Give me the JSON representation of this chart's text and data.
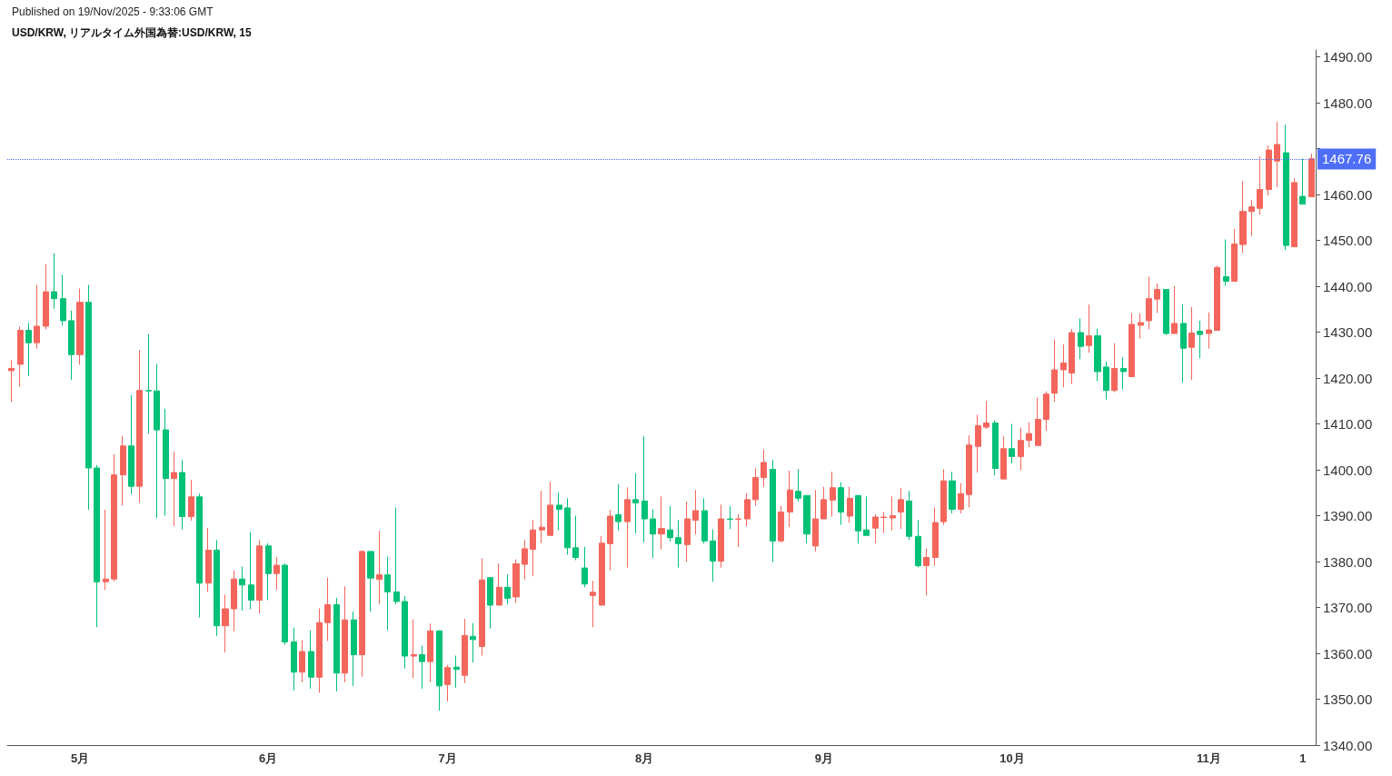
{
  "chart_data": {
    "type": "candlestick",
    "title": "USD/KRW, リアルタイム外国為替:USD/KRW, 15",
    "annotations": [
      "Published on 19/Nov/2025 - 9:33:06 GMT"
    ],
    "categories": [
      null,
      null,
      null,
      null,
      null,
      null,
      null,
      null,
      "5月",
      null,
      null,
      null,
      null,
      null,
      null,
      null,
      null,
      null,
      null,
      null,
      null,
      null,
      null,
      null,
      null,
      null,
      null,
      null,
      null,
      null,
      "6月",
      null,
      null,
      null,
      null,
      null,
      null,
      null,
      null,
      null,
      null,
      null,
      null,
      null,
      null,
      null,
      null,
      null,
      null,
      null,
      null,
      "7月",
      null,
      null,
      null,
      null,
      null,
      null,
      null,
      null,
      null,
      null,
      null,
      null,
      null,
      null,
      null,
      null,
      null,
      null,
      null,
      null,
      null,
      null,
      "8月",
      null,
      null,
      null,
      null,
      null,
      null,
      null,
      null,
      null,
      null,
      null,
      null,
      null,
      null,
      null,
      null,
      null,
      null,
      null,
      null,
      "9月",
      null,
      null,
      null,
      null,
      null,
      null,
      null,
      null,
      null,
      null,
      null,
      null,
      null,
      null,
      null,
      null,
      null,
      null,
      null,
      null,
      null,
      "10月",
      null,
      null,
      null,
      null,
      null,
      null,
      null,
      null,
      null,
      null,
      null,
      null,
      null,
      null,
      null,
      null,
      null,
      null,
      null,
      null,
      null,
      null,
      "11月",
      null,
      null,
      null,
      null,
      null,
      null,
      null,
      null,
      null,
      null,
      "1",
      null
    ],
    "ohlc": [
      [
        1421.6,
        1423.9,
        1414.8,
        1422.1
      ],
      [
        1423.0,
        1431.2,
        1418.1,
        1430.4
      ],
      [
        1430.4,
        1432.0,
        1420.4,
        1427.7
      ],
      [
        1427.7,
        1440.3,
        1426.4,
        1431.3
      ],
      [
        1431.3,
        1444.8,
        1430.6,
        1438.8
      ],
      [
        1438.8,
        1447.2,
        1435.1,
        1437.3
      ],
      [
        1437.3,
        1442.5,
        1431.5,
        1432.5
      ],
      [
        1432.5,
        1434.7,
        1419.6,
        1425.1
      ],
      [
        1425.1,
        1439.5,
        1422.9,
        1436.5
      ],
      [
        1436.5,
        1440.3,
        1391.3,
        1400.4
      ],
      [
        1400.4,
        1401.0,
        1365.7,
        1375.6
      ],
      [
        1375.6,
        1391.3,
        1373.8,
        1376.2
      ],
      [
        1376.2,
        1403.4,
        1375.7,
        1398.9
      ],
      [
        1398.9,
        1407.4,
        1392.2,
        1405.2
      ],
      [
        1405.2,
        1416.3,
        1394.7,
        1396.4
      ],
      [
        1396.4,
        1426.1,
        1392.8,
        1417.3
      ],
      [
        1417.3,
        1429.6,
        1407.9,
        1417.2
      ],
      [
        1417.2,
        1423.1,
        1389.5,
        1408.7
      ],
      [
        1408.7,
        1413.3,
        1390.0,
        1398.1
      ],
      [
        1398.1,
        1404.0,
        1387.7,
        1399.4
      ],
      [
        1399.4,
        1402.2,
        1387.0,
        1389.8
      ],
      [
        1389.8,
        1397.8,
        1388.9,
        1394.1
      ],
      [
        1394.1,
        1394.8,
        1367.8,
        1375.3
      ],
      [
        1375.3,
        1387.3,
        1373.4,
        1382.5
      ],
      [
        1382.5,
        1384.7,
        1363.8,
        1366.0
      ],
      [
        1366.0,
        1372.8,
        1360.2,
        1369.7
      ],
      [
        1369.7,
        1378.1,
        1364.8,
        1376.2
      ],
      [
        1376.2,
        1378.9,
        1369.3,
        1374.9
      ],
      [
        1374.9,
        1386.5,
        1369.6,
        1371.6
      ],
      [
        1371.6,
        1384.7,
        1368.7,
        1383.4
      ],
      [
        1383.4,
        1384.0,
        1371.6,
        1377.4
      ],
      [
        1377.4,
        1381.0,
        1373.8,
        1379.2
      ],
      [
        1379.2,
        1379.6,
        1361.9,
        1362.5
      ],
      [
        1362.5,
        1365.6,
        1351.9,
        1355.9
      ],
      [
        1355.9,
        1362.9,
        1353.7,
        1360.4
      ],
      [
        1360.4,
        1365.0,
        1352.3,
        1354.8
      ],
      [
        1354.8,
        1369.8,
        1351.4,
        1366.7
      ],
      [
        1366.7,
        1376.5,
        1362.7,
        1370.6
      ],
      [
        1370.6,
        1372.1,
        1351.7,
        1355.7
      ],
      [
        1355.7,
        1374.6,
        1353.7,
        1367.3
      ],
      [
        1367.3,
        1369.1,
        1352.9,
        1359.7
      ],
      [
        1359.7,
        1382.5,
        1354.9,
        1382.2
      ],
      [
        1382.2,
        1382.3,
        1369.1,
        1376.4
      ],
      [
        1376.1,
        1386.7,
        1370.7,
        1377.1
      ],
      [
        1377.1,
        1381.1,
        1365.0,
        1373.4
      ],
      [
        1373.4,
        1391.8,
        1370.7,
        1371.3
      ],
      [
        1371.3,
        1372.5,
        1356.7,
        1359.4
      ],
      [
        1359.4,
        1367.4,
        1354.6,
        1359.7
      ],
      [
        1359.7,
        1361.7,
        1352.3,
        1358.2
      ],
      [
        1358.2,
        1366.5,
        1353.7,
        1364.9
      ],
      [
        1364.9,
        1365.0,
        1347.5,
        1352.9
      ],
      [
        1353.2,
        1357.5,
        1349.5,
        1356.9
      ],
      [
        1357.0,
        1359.5,
        1352.5,
        1356.5
      ],
      [
        1355.2,
        1367.5,
        1353.5,
        1363.9
      ],
      [
        1363.7,
        1366.6,
        1358.0,
        1363.0
      ],
      [
        1361.5,
        1380.7,
        1359.5,
        1376.0
      ],
      [
        1376.5,
        1376.5,
        1365.4,
        1370.5
      ],
      [
        1370.5,
        1379.6,
        1370.5,
        1374.4
      ],
      [
        1374.4,
        1377.2,
        1370.7,
        1372.0
      ],
      [
        1372.3,
        1380.5,
        1371.0,
        1379.5
      ],
      [
        1379.4,
        1384.7,
        1376.1,
        1382.8
      ],
      [
        1382.7,
        1389.1,
        1376.8,
        1386.9
      ],
      [
        1386.9,
        1395.4,
        1384.0,
        1387.5
      ],
      [
        1385.7,
        1397.4,
        1385.7,
        1392.3
      ],
      [
        1392.3,
        1395.1,
        1386.8,
        1391.4
      ],
      [
        1391.7,
        1393.8,
        1381.5,
        1383.0
      ],
      [
        1383.0,
        1390.0,
        1380.3,
        1380.9
      ],
      [
        1378.6,
        1383.2,
        1374.4,
        1375.1
      ],
      [
        1372.6,
        1375.8,
        1365.7,
        1373.3
      ],
      [
        1370.5,
        1385.6,
        1370.5,
        1384.0
      ],
      [
        1383.9,
        1391.3,
        1378.1,
        1389.9
      ],
      [
        1390.2,
        1396.9,
        1386.8,
        1388.7
      ],
      [
        1388.7,
        1396.2,
        1378.7,
        1393.5
      ],
      [
        1393.5,
        1399.3,
        1386.2,
        1392.8
      ],
      [
        1393.2,
        1407.3,
        1384.2,
        1389.3
      ],
      [
        1389.3,
        1391.4,
        1380.8,
        1386.0
      ],
      [
        1386.0,
        1394.2,
        1382.6,
        1387.2
      ],
      [
        1386.9,
        1392.1,
        1384.4,
        1385.2
      ],
      [
        1385.2,
        1389.1,
        1378.7,
        1383.9
      ],
      [
        1383.7,
        1393.1,
        1379.9,
        1389.3
      ],
      [
        1389.0,
        1395.6,
        1385.9,
        1391.1
      ],
      [
        1391.1,
        1393.8,
        1383.9,
        1384.5
      ],
      [
        1384.5,
        1387.0,
        1375.6,
        1380.1
      ],
      [
        1380.1,
        1392.4,
        1378.7,
        1389.3
      ],
      [
        1389.3,
        1392.1,
        1387.1,
        1389.2
      ],
      [
        1389.2,
        1390.3,
        1383.2,
        1389.3
      ],
      [
        1389.3,
        1394.9,
        1387.7,
        1393.5
      ],
      [
        1393.5,
        1400.4,
        1392.2,
        1398.3
      ],
      [
        1398.3,
        1404.4,
        1396.3,
        1401.6
      ],
      [
        1400.1,
        1402.2,
        1379.9,
        1384.5
      ],
      [
        1384.5,
        1392.1,
        1384.2,
        1390.8
      ],
      [
        1390.8,
        1399.8,
        1387.5,
        1395.6
      ],
      [
        1395.3,
        1400.2,
        1393.1,
        1393.8
      ],
      [
        1394.4,
        1394.4,
        1384.0,
        1386.0
      ],
      [
        1383.4,
        1395.6,
        1382.2,
        1389.3
      ],
      [
        1389.3,
        1396.3,
        1389.3,
        1393.5
      ],
      [
        1393.4,
        1399.6,
        1389.8,
        1396.1
      ],
      [
        1396.1,
        1397.3,
        1388.0,
        1390.8
      ],
      [
        1389.9,
        1396.3,
        1388.5,
        1393.8
      ],
      [
        1394.4,
        1394.4,
        1383.9,
        1386.7
      ],
      [
        1386.9,
        1394.2,
        1385.7,
        1385.7
      ],
      [
        1387.3,
        1390.3,
        1384.0,
        1389.7
      ],
      [
        1389.6,
        1390.8,
        1386.2,
        1389.7
      ],
      [
        1389.5,
        1394.2,
        1386.8,
        1390.0
      ],
      [
        1390.8,
        1396.0,
        1387.1,
        1393.5
      ],
      [
        1393.2,
        1395.4,
        1384.7,
        1385.5
      ],
      [
        1385.5,
        1389.1,
        1378.7,
        1379.1
      ],
      [
        1379.1,
        1382.8,
        1372.6,
        1380.9
      ],
      [
        1380.9,
        1391.8,
        1379.1,
        1388.5
      ],
      [
        1388.7,
        1400.1,
        1388.0,
        1397.6
      ],
      [
        1397.6,
        1399.6,
        1390.5,
        1391.4
      ],
      [
        1391.4,
        1397.1,
        1390.5,
        1394.8
      ],
      [
        1394.6,
        1407.5,
        1391.8,
        1405.4
      ],
      [
        1405.1,
        1412.0,
        1399.4,
        1409.6
      ],
      [
        1409.3,
        1415.0,
        1408.9,
        1410.2
      ],
      [
        1410.2,
        1410.8,
        1398.8,
        1400.3
      ],
      [
        1398.0,
        1407.3,
        1398.0,
        1404.6
      ],
      [
        1404.6,
        1410.0,
        1401.4,
        1402.9
      ],
      [
        1402.9,
        1409.2,
        1399.9,
        1406.4
      ],
      [
        1406.4,
        1410.4,
        1404.9,
        1407.9
      ],
      [
        1405.3,
        1415.7,
        1405.3,
        1411.0
      ],
      [
        1411.0,
        1417.1,
        1408.5,
        1416.5
      ],
      [
        1416.7,
        1428.4,
        1414.8,
        1421.8
      ],
      [
        1421.8,
        1427.3,
        1418.0,
        1423.3
      ],
      [
        1421.1,
        1430.7,
        1418.7,
        1429.9
      ],
      [
        1429.9,
        1433.0,
        1424.1,
        1426.9
      ],
      [
        1427.1,
        1436.0,
        1425.5,
        1429.2
      ],
      [
        1429.2,
        1430.8,
        1419.3,
        1421.4
      ],
      [
        1422.4,
        1423.6,
        1415.3,
        1417.3
      ],
      [
        1417.3,
        1427.6,
        1416.9,
        1422.1
      ],
      [
        1422.1,
        1424.5,
        1417.5,
        1421.4
      ],
      [
        1420.3,
        1434.1,
        1420.3,
        1431.7
      ],
      [
        1431.5,
        1434.1,
        1428.6,
        1432.1
      ],
      [
        1432.5,
        1442.1,
        1430.6,
        1437.3
      ],
      [
        1437.2,
        1440.6,
        1434.2,
        1439.3
      ],
      [
        1439.3,
        1439.3,
        1429.4,
        1429.7
      ],
      [
        1429.7,
        1440.1,
        1429.7,
        1431.9
      ],
      [
        1431.9,
        1436.1,
        1419.0,
        1426.5
      ],
      [
        1426.7,
        1435.5,
        1419.6,
        1429.8
      ],
      [
        1430.2,
        1432.5,
        1424.3,
        1429.5
      ],
      [
        1429.7,
        1434.3,
        1426.4,
        1430.5
      ],
      [
        1430.4,
        1444.5,
        1430.4,
        1444.1
      ],
      [
        1442.1,
        1450.2,
        1440.1,
        1441.1
      ],
      [
        1441.1,
        1452.5,
        1441.1,
        1449.2
      ],
      [
        1449.1,
        1462.9,
        1447.3,
        1456.3
      ],
      [
        1456.3,
        1458.8,
        1450.9,
        1457.3
      ],
      [
        1457.0,
        1468.3,
        1455.6,
        1461.1
      ],
      [
        1461.1,
        1470.7,
        1459.8,
        1469.7
      ],
      [
        1467.3,
        1475.8,
        1461.6,
        1470.9
      ],
      [
        1469.1,
        1475.2,
        1447.9,
        1448.9
      ],
      [
        1448.6,
        1463.6,
        1448.6,
        1462.6
      ],
      [
        1459.6,
        1467.8,
        1457.9,
        1457.9
      ],
      [
        1459.5,
        1468.9,
        1459.5,
        1467.8
      ]
    ],
    "colors": [
      "#f4665c",
      "#f4665c",
      "#00c176",
      "#f4665c",
      "#f4665c",
      "#00c176",
      "#00c176",
      "#00c176",
      "#f4665c",
      "#00c176",
      "#00c176",
      "#f4665c",
      "#f4665c",
      "#f4665c",
      "#00c176",
      "#f4665c",
      "#00c176",
      "#00c176",
      "#00c176",
      "#f4665c",
      "#00c176",
      "#f4665c",
      "#00c176",
      "#f4665c",
      "#00c176",
      "#f4665c",
      "#f4665c",
      "#00c176",
      "#00c176",
      "#f4665c",
      "#00c176",
      "#f4665c",
      "#00c176",
      "#00c176",
      "#f4665c",
      "#00c176",
      "#f4665c",
      "#f4665c",
      "#00c176",
      "#f4665c",
      "#00c176",
      "#f4665c",
      "#00c176",
      "#f4665c",
      "#00c176",
      "#00c176",
      "#00c176",
      "#f4665c",
      "#00c176",
      "#f4665c",
      "#00c176",
      "#f4665c",
      "#00c176",
      "#f4665c",
      "#00c176",
      "#f4665c",
      "#00c176",
      "#f4665c",
      "#00c176",
      "#f4665c",
      "#f4665c",
      "#f4665c",
      "#f4665c",
      "#f4665c",
      "#00c176",
      "#00c176",
      "#00c176",
      "#00c176",
      "#f4665c",
      "#f4665c",
      "#f4665c",
      "#00c176",
      "#f4665c",
      "#00c176",
      "#00c176",
      "#00c176",
      "#f4665c",
      "#00c176",
      "#00c176",
      "#f4665c",
      "#f4665c",
      "#00c176",
      "#00c176",
      "#f4665c",
      "#00c176",
      "#f4665c",
      "#f4665c",
      "#f4665c",
      "#f4665c",
      "#00c176",
      "#f4665c",
      "#f4665c",
      "#00c176",
      "#00c176",
      "#f4665c",
      "#f4665c",
      "#f4665c",
      "#00c176",
      "#f4665c",
      "#00c176",
      "#00c176",
      "#f4665c",
      "#f4665c",
      "#f4665c",
      "#f4665c",
      "#00c176",
      "#00c176",
      "#f4665c",
      "#f4665c",
      "#f4665c",
      "#00c176",
      "#f4665c",
      "#f4665c",
      "#f4665c",
      "#f4665c",
      "#00c176",
      "#f4665c",
      "#00c176",
      "#f4665c",
      "#f4665c",
      "#f4665c",
      "#f4665c",
      "#f4665c",
      "#f4665c",
      "#f4665c",
      "#00c176",
      "#f4665c",
      "#00c176",
      "#00c176",
      "#f4665c",
      "#00c176",
      "#f4665c",
      "#f4665c",
      "#f4665c",
      "#f4665c",
      "#00c176",
      "#f4665c",
      "#00c176",
      "#f4665c",
      "#00c176",
      "#f4665c",
      "#f4665c",
      "#00c176",
      "#f4665c",
      "#f4665c",
      "#f4665c",
      "#f4665c",
      "#f4665c",
      "#f4665c",
      "#00c176",
      "#f4665c",
      "#00c176",
      "#f4665c"
    ],
    "ylim": [
      1340,
      1491.5
    ],
    "yticks": [
      {
        "value": 1340,
        "label": "1340.00"
      },
      {
        "value": 1350,
        "label": "1350.00"
      },
      {
        "value": 1360,
        "label": "1360.00"
      },
      {
        "value": 1370,
        "label": "1370.00"
      },
      {
        "value": 1380,
        "label": "1380.00"
      },
      {
        "value": 1390,
        "label": "1390.00"
      },
      {
        "value": 1400,
        "label": "1400.00"
      },
      {
        "value": 1410,
        "label": "1410.00"
      },
      {
        "value": 1420,
        "label": "1420.00"
      },
      {
        "value": 1430,
        "label": "1430.00"
      },
      {
        "value": 1440,
        "label": "1440.00"
      },
      {
        "value": 1450,
        "label": "1450.00"
      },
      {
        "value": 1460,
        "label": "1460.00"
      },
      {
        "value": 1470,
        "label": null
      },
      {
        "value": 1480,
        "label": "1480.00"
      },
      {
        "value": 1490,
        "label": "1490.00"
      }
    ],
    "ref_lines": [
      {
        "axis": "y",
        "value": 1467.76,
        "label": "1467.76",
        "color": "#4f6ef7",
        "line_style": "dotted"
      }
    ],
    "grid": false
  }
}
